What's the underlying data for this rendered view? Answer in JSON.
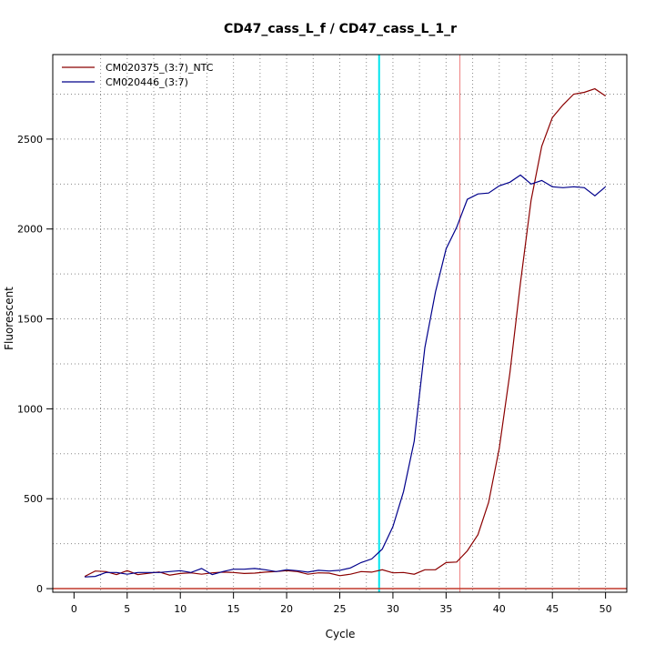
{
  "chart_data": {
    "type": "line",
    "title": "CD47_cass_L_f / CD47_cass_L_1_r",
    "xlabel": "Cycle",
    "ylabel": "Fluorescent",
    "xlim": [
      -2,
      52
    ],
    "ylim": [
      -20,
      2970
    ],
    "x_ticks": [
      0,
      5,
      10,
      15,
      20,
      25,
      30,
      35,
      40,
      45,
      50
    ],
    "y_ticks": [
      0,
      500,
      1000,
      1500,
      2000,
      2500
    ],
    "grid": true,
    "legend_position": "top-left",
    "series": [
      {
        "name": "CM020375_(3:7)_NTC",
        "color": "#8b0000",
        "x": [
          1,
          2,
          3,
          4,
          5,
          6,
          7,
          8,
          9,
          10,
          11,
          12,
          13,
          14,
          15,
          16,
          17,
          18,
          19,
          20,
          21,
          22,
          23,
          24,
          25,
          26,
          27,
          28,
          29,
          30,
          31,
          32,
          33,
          34,
          35,
          36,
          37,
          38,
          39,
          40,
          41,
          42,
          43,
          44,
          45,
          46,
          47,
          48,
          49,
          50
        ],
        "values": [
          68,
          98,
          95,
          78,
          100,
          78,
          85,
          93,
          75,
          84,
          88,
          80,
          88,
          92,
          90,
          84,
          86,
          92,
          95,
          100,
          95,
          80,
          88,
          86,
          72,
          80,
          95,
          92,
          105,
          88,
          90,
          80,
          105,
          105,
          145,
          148,
          210,
          300,
          480,
          780,
          1200,
          1700,
          2160,
          2460,
          2620,
          2690,
          2750,
          2760,
          2780,
          2740
        ]
      },
      {
        "name": "CM020446_(3:7)",
        "color": "#00008b",
        "x": [
          1,
          2,
          3,
          4,
          5,
          6,
          7,
          8,
          9,
          10,
          11,
          12,
          13,
          14,
          15,
          16,
          17,
          18,
          19,
          20,
          21,
          22,
          23,
          24,
          25,
          26,
          27,
          28,
          29,
          30,
          31,
          32,
          33,
          34,
          35,
          36,
          37,
          38,
          39,
          40,
          41,
          42,
          43,
          44,
          45,
          46,
          47,
          48,
          49,
          50
        ],
        "values": [
          65,
          68,
          90,
          90,
          80,
          90,
          90,
          90,
          95,
          100,
          90,
          112,
          78,
          95,
          108,
          108,
          112,
          105,
          95,
          105,
          100,
          92,
          102,
          98,
          102,
          115,
          145,
          165,
          220,
          345,
          540,
          820,
          1340,
          1650,
          1890,
          2010,
          2165,
          2195,
          2200,
          2240,
          2260,
          2300,
          2250,
          2270,
          2235,
          2230,
          2235,
          2230,
          2185,
          2235
        ]
      }
    ],
    "reference_lines": [
      {
        "orientation": "vertical",
        "value": 28.7,
        "color": "#00e5ee"
      },
      {
        "orientation": "vertical",
        "value": 36.3,
        "color": "#f08080"
      },
      {
        "orientation": "horizontal",
        "value": 0,
        "color": "#c0392b"
      }
    ]
  }
}
